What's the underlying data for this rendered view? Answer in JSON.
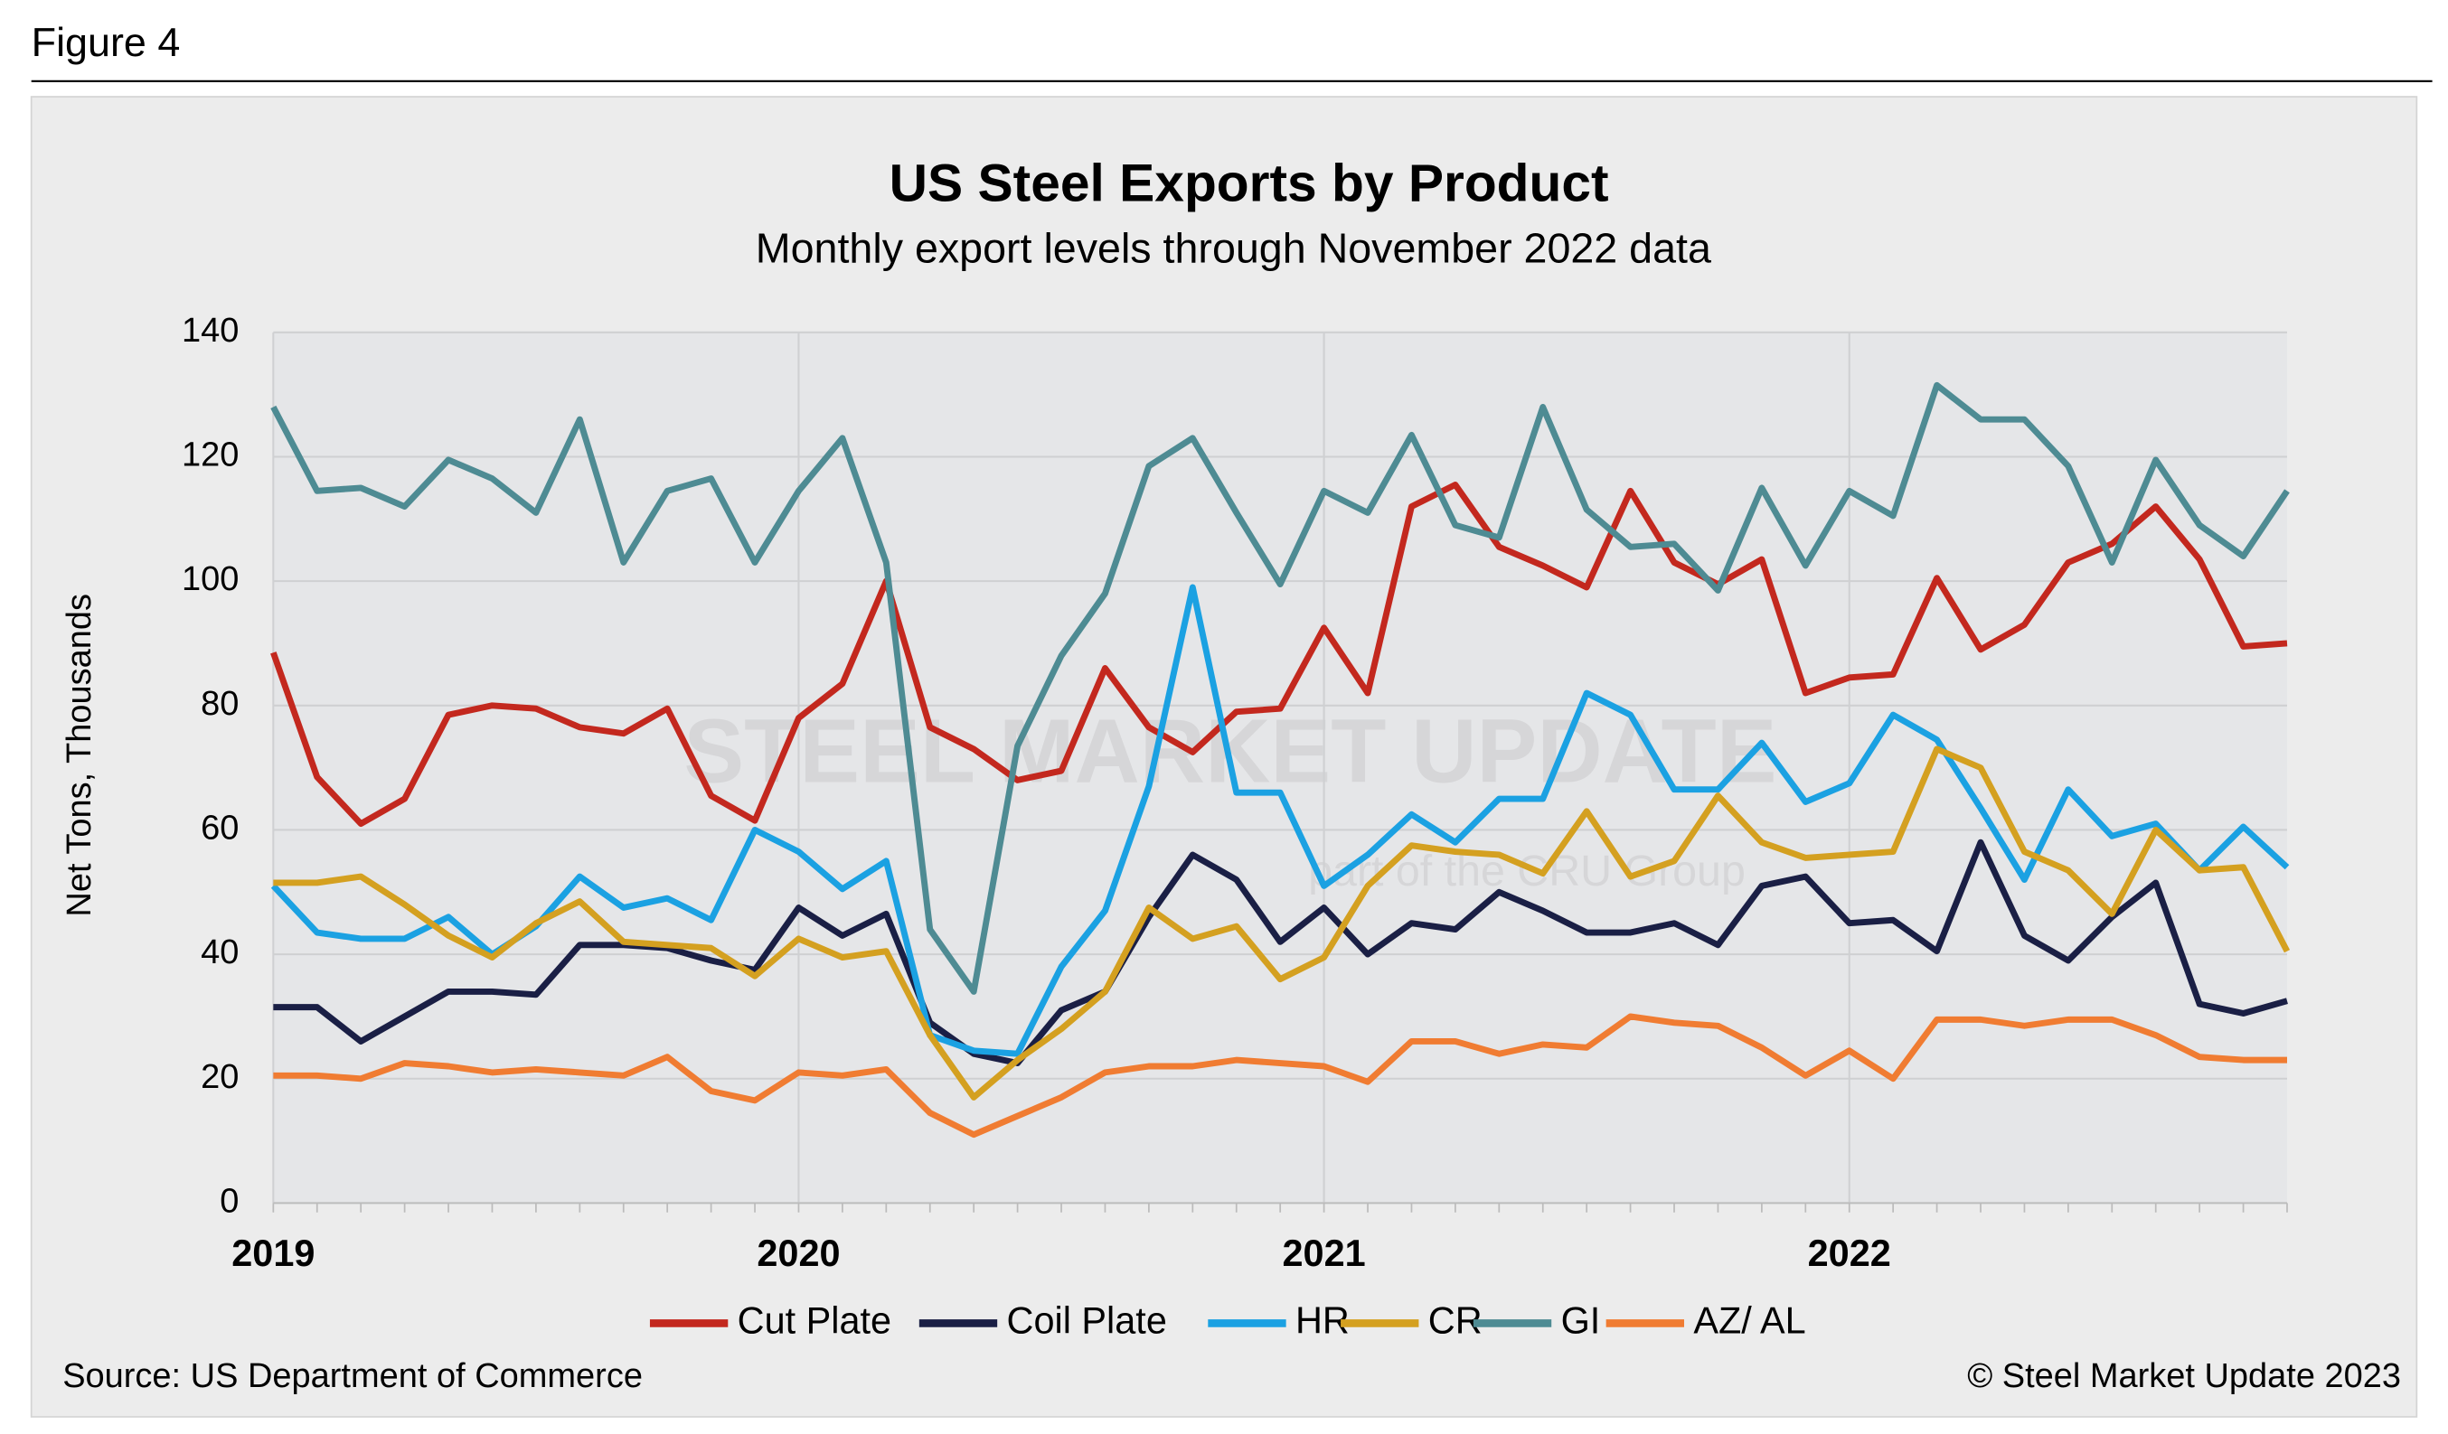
{
  "figure_label": "Figure 4",
  "chart_data": {
    "type": "line",
    "title": "US Steel Exports by Product",
    "subtitle": "Monthly export levels through November 2022 data",
    "y_axis_label": "Net Tons, Thousands",
    "source": "Source: US Department of Commerce",
    "copyright": "© Steel Market Update 2023",
    "watermark": [
      "STEEL MARKET UPDATE",
      "part of the CRU Group"
    ],
    "categories": [
      "2019",
      null,
      null,
      null,
      null,
      null,
      null,
      null,
      null,
      null,
      null,
      null,
      "2020",
      null,
      null,
      null,
      null,
      null,
      null,
      null,
      null,
      null,
      null,
      null,
      "2021",
      null,
      null,
      null,
      null,
      null,
      null,
      null,
      null,
      null,
      null,
      null,
      "2022",
      null,
      null,
      null,
      null,
      null,
      null,
      null,
      null,
      null,
      null
    ],
    "ylim": [
      0,
      140
    ],
    "yticks": [
      0,
      20,
      40,
      60,
      80,
      100,
      120,
      140
    ],
    "grid": true,
    "legend": "bottom",
    "series": [
      {
        "name": "Cut Plate",
        "color": "#c3281e",
        "values": [
          88.5,
          68.5,
          61,
          65,
          78.5,
          80,
          79.5,
          76.5,
          75.5,
          79.5,
          65.5,
          61.5,
          78,
          83.5,
          100,
          76.5,
          73,
          68,
          69.5,
          86,
          76.5,
          72.5,
          79,
          79.5,
          92.5,
          82,
          112,
          115.5,
          105.5,
          102.5,
          99,
          114.5,
          103,
          99.5,
          103.5,
          82,
          84.5,
          85,
          100.5,
          89,
          93,
          103,
          106,
          112,
          103.5,
          89.5,
          90
        ]
      },
      {
        "name": "Coil Plate",
        "color": "#1a1f45",
        "values": [
          31.5,
          31.5,
          26,
          30,
          34,
          34,
          33.5,
          41.5,
          41.5,
          41,
          39,
          37.5,
          47.5,
          43,
          46.5,
          29,
          24,
          22.5,
          31,
          34,
          46,
          56,
          52,
          42,
          47.5,
          40,
          45,
          44,
          50,
          47,
          43.5,
          43.5,
          45,
          41.5,
          51,
          52.5,
          45,
          45.5,
          40.5,
          58,
          43,
          39,
          46,
          51.5,
          32,
          30.5,
          32.5
        ]
      },
      {
        "name": "HR",
        "color": "#1ba1e2",
        "values": [
          51,
          43.5,
          42.5,
          42.5,
          46,
          40,
          44.5,
          52.5,
          47.5,
          49,
          45.5,
          60,
          56.5,
          50.5,
          55,
          27,
          24.5,
          24,
          38,
          47,
          67,
          99,
          66,
          66,
          51,
          56,
          62.5,
          58,
          65,
          65,
          82,
          78.5,
          66.5,
          66.5,
          74,
          64.5,
          67.5,
          78.5,
          74.5,
          63.5,
          52,
          66.5,
          59,
          61,
          53.5,
          60.5,
          54
        ]
      },
      {
        "name": "CR",
        "color": "#d4a020",
        "values": [
          51.5,
          51.5,
          52.5,
          48,
          43,
          39.5,
          45,
          48.5,
          42,
          41.5,
          41,
          36.5,
          42.5,
          39.5,
          40.5,
          27,
          17,
          23,
          28,
          34,
          47.5,
          42.5,
          44.5,
          36,
          39.5,
          51,
          57.5,
          56.5,
          56,
          53,
          63,
          52.5,
          55,
          65.5,
          58,
          55.5,
          56,
          56.5,
          73,
          70,
          56.5,
          53.5,
          46.5,
          60,
          53.5,
          54,
          40.5
        ]
      },
      {
        "name": "GI",
        "color": "#4e8b93",
        "values": [
          128,
          114.5,
          115,
          112,
          119.5,
          116.5,
          111,
          126,
          103,
          114.5,
          116.5,
          103,
          114.5,
          123,
          103,
          44,
          34,
          73.5,
          88,
          98,
          118.5,
          123,
          111,
          99.5,
          114.5,
          111,
          123.5,
          109,
          107,
          128,
          111.5,
          105.5,
          106,
          98.5,
          115,
          102.5,
          114.5,
          110.5,
          131.5,
          126,
          126,
          118.5,
          103,
          119.5,
          109,
          104,
          114.5
        ]
      },
      {
        "name": "AZ/ AL",
        "color": "#f07c32",
        "values": [
          20.5,
          20.5,
          20,
          22.5,
          22,
          21,
          21.5,
          21,
          20.5,
          23.5,
          18,
          16.5,
          21,
          20.5,
          21.5,
          14.5,
          11,
          14,
          17,
          21,
          22,
          22,
          23,
          22.5,
          22,
          19.5,
          26,
          26,
          24,
          25.5,
          25,
          30,
          29,
          28.5,
          25,
          20.5,
          24.5,
          20,
          29.5,
          29.5,
          28.5,
          29.5,
          29.5,
          27,
          23.5,
          23,
          23
        ]
      }
    ]
  }
}
